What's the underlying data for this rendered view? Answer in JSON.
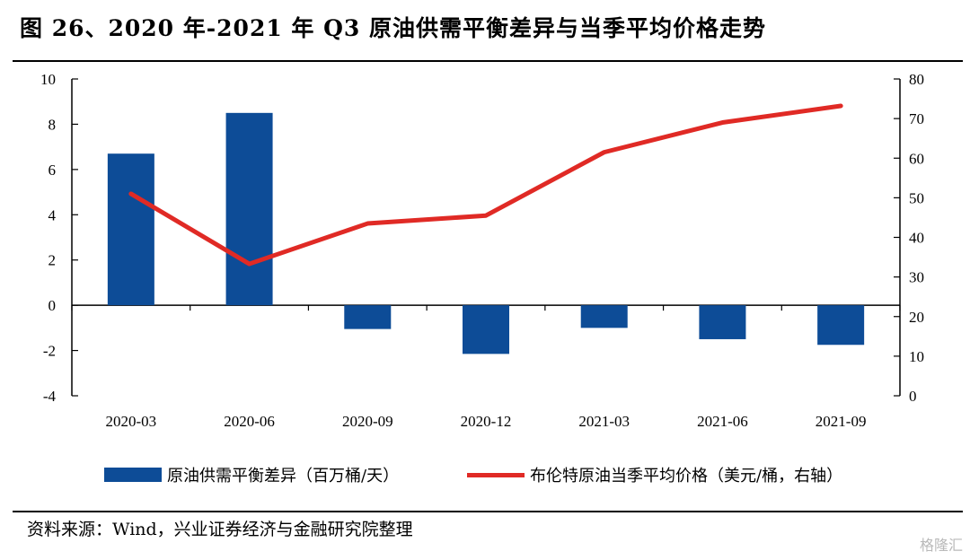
{
  "title": "图 26、2020 年-2021 年 Q3 原油供需平衡差异与当季平均价格走势",
  "source": "资料来源：Wind，兴业证券经济与金融研究院整理",
  "watermark": "格隆汇",
  "colors": {
    "bar": "#0d4c97",
    "line": "#e02a25"
  },
  "chart_data": {
    "type": "bar+line",
    "categories": [
      "2020-03",
      "2020-06",
      "2020-09",
      "2020-12",
      "2021-03",
      "2021-06",
      "2021-09"
    ],
    "series": [
      {
        "name": "原油供需平衡差异（百万桶/天）",
        "type": "bar",
        "axis": "left",
        "values": [
          6.7,
          8.5,
          -1.05,
          -2.15,
          -1.0,
          -1.5,
          -1.75
        ]
      },
      {
        "name": "布伦特原油当季平均价格（美元/桶，右轴）",
        "type": "line",
        "axis": "right",
        "values": [
          51,
          33.3,
          43.5,
          45.5,
          61.5,
          69,
          73.2
        ]
      }
    ],
    "y_left": {
      "range": [
        -4,
        10
      ],
      "ticks": [
        -4,
        -2,
        0,
        2,
        4,
        6,
        8,
        10
      ]
    },
    "y_right": {
      "range": [
        0,
        80
      ],
      "ticks": [
        0,
        10,
        20,
        30,
        40,
        50,
        60,
        70,
        80
      ]
    },
    "legend_position": "bottom",
    "grid": false
  }
}
